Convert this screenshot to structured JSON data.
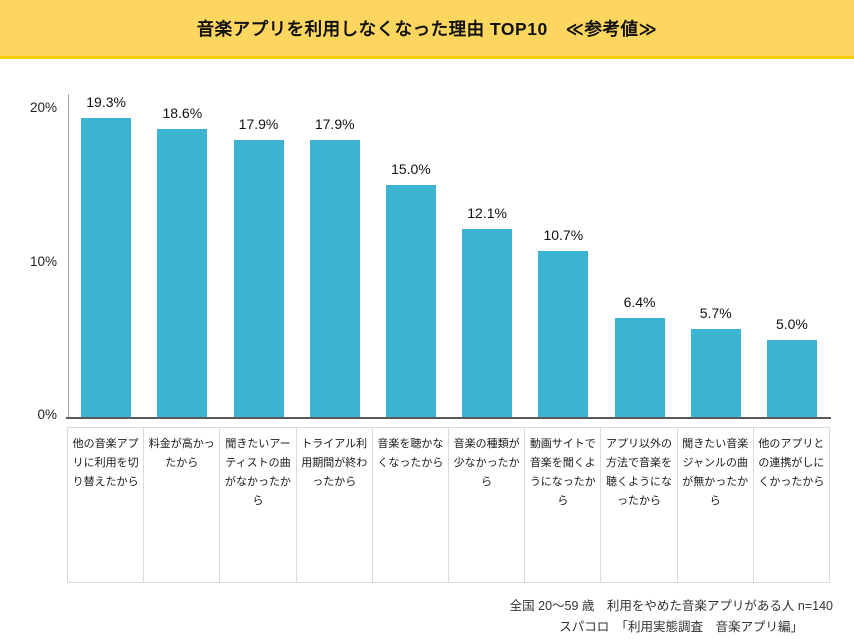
{
  "header": {
    "title": "音楽アプリを利用しなくなった理由 TOP10　≪参考値≫",
    "band_color": "#FCD65F",
    "band_border_color": "#F8CE00"
  },
  "chart_data": {
    "type": "bar",
    "title": "音楽アプリを利用しなくなった理由 TOP10　≪参考値≫",
    "categories": [
      "他の音楽アプリに利用を切り替えたから",
      "料金が高かったから",
      "聞きたいアーティストの曲がなかったから",
      "トライアル利用期間が終わったから",
      "音楽を聴かなくなったから",
      "音楽の種類が少なかったから",
      "動画サイトで音楽を聞くようになったから",
      "アプリ以外の方法で音楽を聴くようになったから",
      "聞きたい音楽ジャンルの曲が無かったから",
      "他のアプリとの連携がしにくかったから"
    ],
    "values": [
      19.3,
      18.6,
      17.9,
      17.9,
      15.0,
      12.1,
      10.7,
      6.4,
      5.7,
      5.0
    ],
    "value_labels": [
      "19.3%",
      "18.6%",
      "17.9%",
      "17.9%",
      "15.0%",
      "12.1%",
      "10.7%",
      "6.4%",
      "5.7%",
      "5.0%"
    ],
    "xlabel": "",
    "ylabel": "",
    "ylim": [
      0,
      20
    ],
    "yticks": {
      "t20": "20%",
      "t10": "10%",
      "t0": "0%"
    },
    "grid": false,
    "legend": false,
    "bar_color": "#3BB3D1",
    "axis_line_color": "#A6A6A6",
    "baseline_color": "#595959"
  },
  "footer": {
    "line1": "全国 20〜59 歳　利用をやめた音楽アプリがある人 n=140",
    "line2": "スパコロ　「利用実態調査　音楽アプリ編」"
  }
}
